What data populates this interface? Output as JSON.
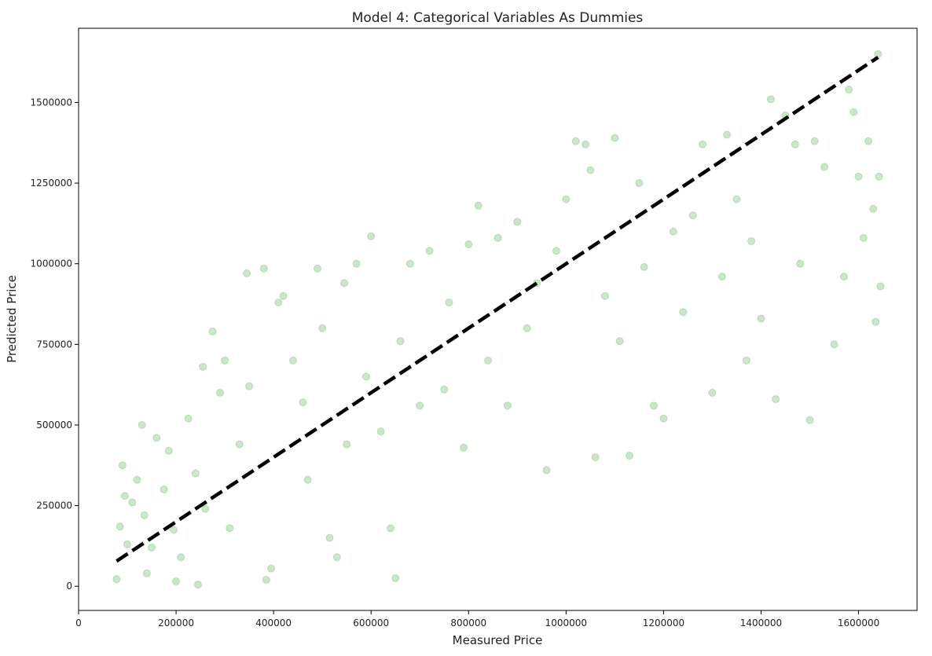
{
  "chart_data": {
    "type": "scatter",
    "title": "Model 4: Categorical Variables As Dummies",
    "xlabel": "Measured Price",
    "ylabel": "Predicted Price",
    "xlim": [
      0,
      1720000
    ],
    "ylim": [
      -75000,
      1730000
    ],
    "x_ticks": [
      0,
      200000,
      400000,
      600000,
      800000,
      1000000,
      1200000,
      1400000,
      1600000
    ],
    "x_tick_labels": [
      "0",
      "200000",
      "400000",
      "600000",
      "800000",
      "1000000",
      "1200000",
      "1400000",
      "1600000"
    ],
    "y_ticks": [
      0,
      250000,
      500000,
      750000,
      1000000,
      1250000,
      1500000
    ],
    "y_tick_labels": [
      "0",
      "250000",
      "500000",
      "750000",
      "1000000",
      "1250000",
      "1500000"
    ],
    "grid": false,
    "series": [
      {
        "kind": "scatter",
        "color": "#008000",
        "alpha": 0.2,
        "marker": "circle",
        "points": [
          [
            78000,
            22000
          ],
          [
            85000,
            185000
          ],
          [
            90000,
            375000
          ],
          [
            95000,
            280000
          ],
          [
            100000,
            130000
          ],
          [
            110000,
            260000
          ],
          [
            120000,
            330000
          ],
          [
            130000,
            500000
          ],
          [
            135000,
            220000
          ],
          [
            140000,
            40000
          ],
          [
            150000,
            120000
          ],
          [
            160000,
            460000
          ],
          [
            175000,
            300000
          ],
          [
            185000,
            420000
          ],
          [
            195000,
            175000
          ],
          [
            200000,
            15000
          ],
          [
            210000,
            90000
          ],
          [
            225000,
            520000
          ],
          [
            240000,
            350000
          ],
          [
            245000,
            5000
          ],
          [
            255000,
            680000
          ],
          [
            260000,
            240000
          ],
          [
            275000,
            790000
          ],
          [
            290000,
            600000
          ],
          [
            300000,
            700000
          ],
          [
            310000,
            180000
          ],
          [
            330000,
            440000
          ],
          [
            345000,
            970000
          ],
          [
            350000,
            620000
          ],
          [
            380000,
            985000
          ],
          [
            385000,
            20000
          ],
          [
            395000,
            55000
          ],
          [
            410000,
            880000
          ],
          [
            420000,
            900000
          ],
          [
            440000,
            700000
          ],
          [
            460000,
            570000
          ],
          [
            470000,
            330000
          ],
          [
            490000,
            985000
          ],
          [
            500000,
            800000
          ],
          [
            515000,
            150000
          ],
          [
            530000,
            90000
          ],
          [
            545000,
            940000
          ],
          [
            550000,
            440000
          ],
          [
            570000,
            1000000
          ],
          [
            590000,
            650000
          ],
          [
            600000,
            1085000
          ],
          [
            620000,
            480000
          ],
          [
            640000,
            180000
          ],
          [
            650000,
            25000
          ],
          [
            660000,
            760000
          ],
          [
            680000,
            1000000
          ],
          [
            700000,
            560000
          ],
          [
            720000,
            1040000
          ],
          [
            750000,
            610000
          ],
          [
            760000,
            880000
          ],
          [
            790000,
            430000
          ],
          [
            800000,
            1060000
          ],
          [
            820000,
            1180000
          ],
          [
            840000,
            700000
          ],
          [
            860000,
            1080000
          ],
          [
            880000,
            560000
          ],
          [
            900000,
            1130000
          ],
          [
            920000,
            800000
          ],
          [
            940000,
            940000
          ],
          [
            960000,
            360000
          ],
          [
            980000,
            1040000
          ],
          [
            1000000,
            1200000
          ],
          [
            1020000,
            1380000
          ],
          [
            1040000,
            1370000
          ],
          [
            1050000,
            1290000
          ],
          [
            1060000,
            400000
          ],
          [
            1080000,
            900000
          ],
          [
            1100000,
            1390000
          ],
          [
            1110000,
            760000
          ],
          [
            1130000,
            405000
          ],
          [
            1150000,
            1250000
          ],
          [
            1160000,
            990000
          ],
          [
            1180000,
            560000
          ],
          [
            1200000,
            520000
          ],
          [
            1220000,
            1100000
          ],
          [
            1240000,
            850000
          ],
          [
            1260000,
            1150000
          ],
          [
            1280000,
            1370000
          ],
          [
            1300000,
            600000
          ],
          [
            1320000,
            960000
          ],
          [
            1330000,
            1400000
          ],
          [
            1350000,
            1200000
          ],
          [
            1370000,
            700000
          ],
          [
            1380000,
            1070000
          ],
          [
            1400000,
            830000
          ],
          [
            1420000,
            1510000
          ],
          [
            1430000,
            580000
          ],
          [
            1450000,
            1460000
          ],
          [
            1470000,
            1370000
          ],
          [
            1480000,
            1000000
          ],
          [
            1500000,
            515000
          ],
          [
            1510000,
            1380000
          ],
          [
            1530000,
            1300000
          ],
          [
            1550000,
            750000
          ],
          [
            1570000,
            960000
          ],
          [
            1580000,
            1540000
          ],
          [
            1590000,
            1470000
          ],
          [
            1600000,
            1270000
          ],
          [
            1610000,
            1080000
          ],
          [
            1620000,
            1380000
          ],
          [
            1630000,
            1170000
          ],
          [
            1635000,
            820000
          ],
          [
            1640000,
            1650000
          ],
          [
            1642000,
            1270000
          ],
          [
            1645000,
            930000
          ]
        ]
      },
      {
        "kind": "line",
        "style": "dashed",
        "color": "#000000",
        "x": [
          78000,
          1640000
        ],
        "y": [
          78000,
          1640000
        ]
      }
    ]
  }
}
